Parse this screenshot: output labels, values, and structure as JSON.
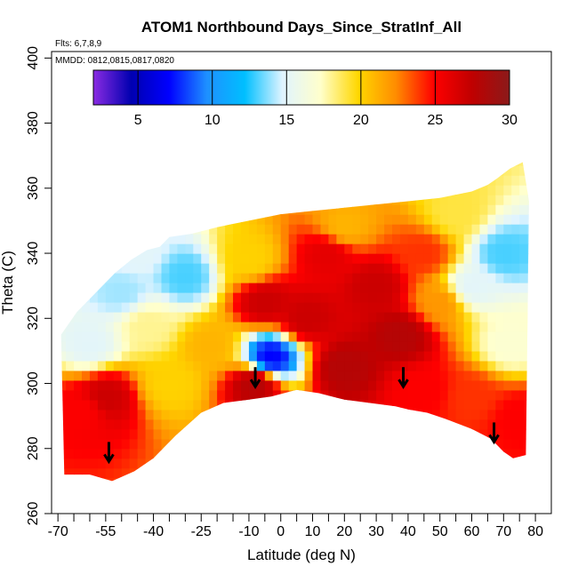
{
  "chart_data": {
    "type": "heatmap",
    "title": "ATOM1 Northbound Days_Since_StratInf_All",
    "notes": {
      "flights": "Flts: 6,7,8,9",
      "dates": "MMDD: 0812,0815,0817,0820"
    },
    "xlabel": "Latitude (deg N)",
    "ylabel": "Theta (C)",
    "xlim": [
      -72,
      85
    ],
    "ylim": [
      260,
      402
    ],
    "x_ticks": [
      -70,
      -55,
      -40,
      -25,
      -10,
      0,
      10,
      20,
      30,
      40,
      50,
      60,
      70,
      80
    ],
    "x_tick_labels": [
      "-70",
      "-55",
      "-40",
      "-25",
      "-10",
      "0",
      "10",
      "20",
      "30",
      "40",
      "50",
      "60",
      "70",
      "80"
    ],
    "x_minor_ticks": [
      -65,
      -60,
      -50,
      -45,
      -35,
      -30,
      -20,
      -15,
      -5,
      5,
      15,
      25,
      35,
      45,
      55,
      65,
      75
    ],
    "y_ticks": [
      260,
      280,
      300,
      320,
      340,
      360,
      380,
      400
    ],
    "y_tick_labels": [
      "260",
      "280",
      "300",
      "320",
      "340",
      "360",
      "380",
      "400"
    ],
    "colorbar": {
      "range": [
        2,
        30
      ],
      "ticks": [
        5,
        10,
        15,
        20,
        25,
        30
      ],
      "tick_labels": [
        "5",
        "10",
        "15",
        "20",
        "25",
        "30"
      ],
      "colors": [
        "#8a2be2",
        "#0000b0",
        "#0000ff",
        "#1e90ff",
        "#00bfff",
        "#e0f4ff",
        "#ffffcc",
        "#ffd700",
        "#ff8c00",
        "#ff0000",
        "#c00000",
        "#8b1a1a"
      ]
    },
    "bottom_boundary": {
      "lat": [
        -68,
        -60,
        -53,
        -46,
        -40,
        -33,
        -25,
        -18,
        -10,
        -3,
        5,
        12,
        20,
        28,
        36,
        40,
        46,
        52,
        60,
        66,
        70,
        73,
        77
      ],
      "theta": [
        272,
        272,
        270,
        273,
        277,
        284,
        291,
        294,
        295,
        296,
        298,
        297,
        295,
        294,
        293,
        292,
        291,
        289,
        286,
        283,
        279,
        277,
        278
      ]
    },
    "top_boundary": {
      "lat": [
        -69,
        -64,
        -58,
        -52,
        -47,
        -42,
        -38,
        -35,
        -28,
        -20,
        -10,
        0,
        10,
        20,
        30,
        40,
        50,
        55,
        60,
        65,
        68,
        72,
        76,
        78
      ],
      "theta": [
        315,
        322,
        328,
        334,
        338,
        341,
        342,
        345,
        346,
        348,
        350,
        352,
        353,
        354,
        355,
        356,
        357,
        358,
        359,
        361,
        363,
        366,
        368,
        356
      ]
    },
    "field_centers": [
      {
        "lat": -62,
        "theta": 292,
        "value": 25
      },
      {
        "lat": -55,
        "theta": 296,
        "value": 27
      },
      {
        "lat": -60,
        "theta": 312,
        "value": 15
      },
      {
        "lat": -50,
        "theta": 328,
        "value": 14
      },
      {
        "lat": -42,
        "theta": 318,
        "value": 18
      },
      {
        "lat": -30,
        "theta": 333,
        "value": 13
      },
      {
        "lat": -35,
        "theta": 300,
        "value": 20
      },
      {
        "lat": -22,
        "theta": 312,
        "value": 21
      },
      {
        "lat": -10,
        "theta": 338,
        "value": 20
      },
      {
        "lat": -5,
        "theta": 325,
        "value": 27
      },
      {
        "lat": -8,
        "theta": 300,
        "value": 28
      },
      {
        "lat": -3,
        "theta": 308,
        "value": 7
      },
      {
        "lat": 8,
        "theta": 320,
        "value": 27
      },
      {
        "lat": 15,
        "theta": 340,
        "value": 26
      },
      {
        "lat": 20,
        "theta": 305,
        "value": 28
      },
      {
        "lat": 30,
        "theta": 330,
        "value": 27
      },
      {
        "lat": 38,
        "theta": 315,
        "value": 28
      },
      {
        "lat": 45,
        "theta": 340,
        "value": 24
      },
      {
        "lat": 50,
        "theta": 325,
        "value": 22
      },
      {
        "lat": 45,
        "theta": 298,
        "value": 25
      },
      {
        "lat": 60,
        "theta": 296,
        "value": 24
      },
      {
        "lat": 60,
        "theta": 330,
        "value": 15
      },
      {
        "lat": 70,
        "theta": 340,
        "value": 13
      },
      {
        "lat": 72,
        "theta": 312,
        "value": 17
      },
      {
        "lat": 75,
        "theta": 290,
        "value": 25
      },
      {
        "lat": 20,
        "theta": 348,
        "value": 21
      },
      {
        "lat": 55,
        "theta": 352,
        "value": 19
      },
      {
        "lat": -45,
        "theta": 340,
        "value": 15
      }
    ],
    "markers": [
      {
        "type": "down-arrow",
        "lat": -54,
        "theta": 276
      },
      {
        "type": "down-arrow",
        "lat": -8,
        "theta": 299
      },
      {
        "type": "down-arrow",
        "lat": 38.5,
        "theta": 299
      },
      {
        "type": "down-arrow",
        "lat": 67,
        "theta": 282
      }
    ]
  }
}
